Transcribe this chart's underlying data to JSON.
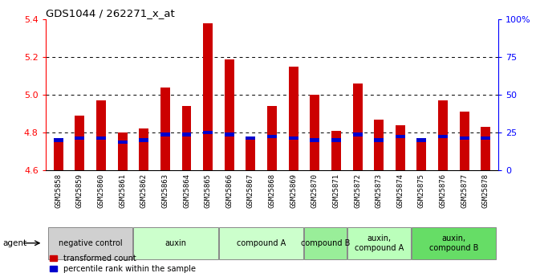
{
  "title": "GDS1044 / 262271_x_at",
  "samples": [
    "GSM25858",
    "GSM25859",
    "GSM25860",
    "GSM25861",
    "GSM25862",
    "GSM25863",
    "GSM25864",
    "GSM25865",
    "GSM25866",
    "GSM25867",
    "GSM25868",
    "GSM25869",
    "GSM25870",
    "GSM25871",
    "GSM25872",
    "GSM25873",
    "GSM25874",
    "GSM25875",
    "GSM25876",
    "GSM25877",
    "GSM25878"
  ],
  "red_values": [
    4.75,
    4.89,
    4.97,
    4.8,
    4.82,
    5.04,
    4.94,
    5.38,
    5.19,
    4.77,
    4.94,
    5.15,
    5.0,
    4.81,
    5.06,
    4.87,
    4.84,
    4.76,
    4.97,
    4.91,
    4.83
  ],
  "blue_values": [
    4.76,
    4.77,
    4.77,
    4.75,
    4.76,
    4.79,
    4.79,
    4.8,
    4.79,
    4.77,
    4.78,
    4.77,
    4.76,
    4.76,
    4.79,
    4.76,
    4.78,
    4.76,
    4.78,
    4.77,
    4.77
  ],
  "ymin": 4.6,
  "ymax": 5.4,
  "yticks": [
    4.6,
    4.8,
    5.0,
    5.2,
    5.4
  ],
  "grid_lines": [
    4.8,
    5.0,
    5.2
  ],
  "right_yticks_pct": [
    0,
    25,
    50,
    75,
    100
  ],
  "right_yticklabels": [
    "0",
    "25",
    "50",
    "75",
    "100%"
  ],
  "groups": [
    {
      "label": "negative control",
      "start": 0,
      "end": 3,
      "color": "#d0d0d0"
    },
    {
      "label": "auxin",
      "start": 4,
      "end": 7,
      "color": "#ccffcc"
    },
    {
      "label": "compound A",
      "start": 8,
      "end": 11,
      "color": "#ccffcc"
    },
    {
      "label": "compound B",
      "start": 12,
      "end": 13,
      "color": "#99ee99"
    },
    {
      "label": "auxin,\ncompound A",
      "start": 14,
      "end": 16,
      "color": "#bbffbb"
    },
    {
      "label": "auxin,\ncompound B",
      "start": 17,
      "end": 20,
      "color": "#66dd66"
    }
  ],
  "bar_width": 0.45,
  "red_color": "#cc0000",
  "blue_color": "#0000cc",
  "left_axis_color": "red",
  "right_axis_color": "blue",
  "legend_red": "transformed count",
  "legend_blue": "percentile rank within the sample"
}
